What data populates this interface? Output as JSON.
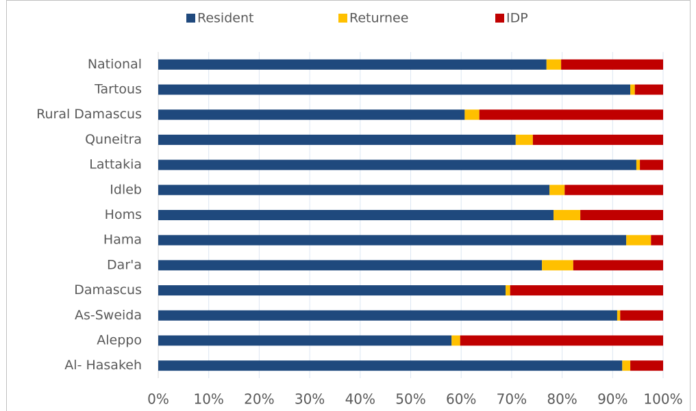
{
  "chart_data": {
    "type": "stacked-bar-horizontal",
    "categories": [
      "National",
      "Tartous",
      "Rural Damascus",
      "Quneitra",
      "Lattakia",
      "Idleb",
      "Homs",
      "Hama",
      "Dar'a",
      "Damascus",
      "As-Sweida",
      "Aleppo",
      "Al- Hasakeh"
    ],
    "series": [
      {
        "name": "Resident",
        "color": "#1f497d",
        "values": [
          76.9,
          93.5,
          60.7,
          70.8,
          94.7,
          77.5,
          78.3,
          92.7,
          76.0,
          68.8,
          90.9,
          58.1,
          91.9
        ]
      },
      {
        "name": "Returnee",
        "color": "#ffc000",
        "values": [
          2.9,
          0.9,
          2.9,
          3.4,
          0.7,
          3.0,
          5.3,
          4.9,
          6.2,
          0.9,
          0.6,
          1.7,
          1.6
        ]
      },
      {
        "name": "IDP",
        "color": "#c00000",
        "values": [
          20.2,
          5.6,
          36.4,
          25.8,
          4.6,
          19.5,
          16.4,
          2.4,
          17.8,
          30.3,
          8.5,
          40.2,
          6.5
        ]
      }
    ],
    "xlim": [
      0,
      100
    ],
    "xticks": [
      {
        "value": 0,
        "label": "0%"
      },
      {
        "value": 10,
        "label": "10%"
      },
      {
        "value": 20,
        "label": "20%"
      },
      {
        "value": 30,
        "label": "30%"
      },
      {
        "value": 40,
        "label": "40%"
      },
      {
        "value": 50,
        "label": "50%"
      },
      {
        "value": 60,
        "label": "60%"
      },
      {
        "value": 70,
        "label": "70%"
      },
      {
        "value": 80,
        "label": "80%"
      },
      {
        "value": 90,
        "label": "90%"
      },
      {
        "value": 100,
        "label": "100%"
      }
    ],
    "grid": true,
    "legend": "top"
  }
}
